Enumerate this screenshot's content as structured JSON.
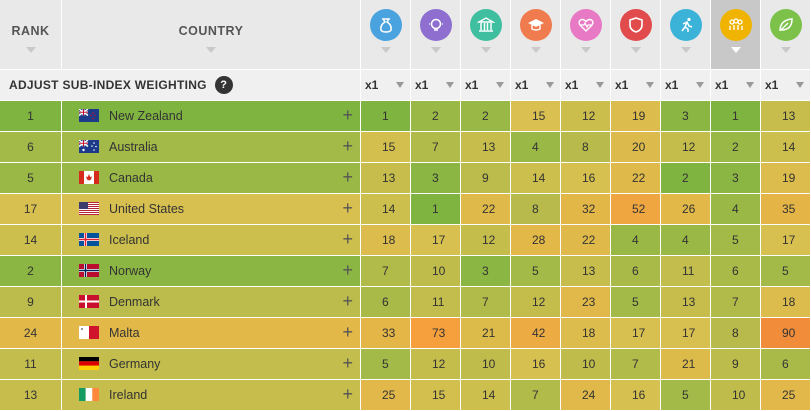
{
  "header": {
    "rank_label": "RANK",
    "country_label": "COUNTRY",
    "subindices": [
      {
        "icon": "money-bag-icon",
        "color": "#4aa3df",
        "active": false
      },
      {
        "icon": "lightbulb-icon",
        "color": "#8e6fd0",
        "active": false
      },
      {
        "icon": "government-building-icon",
        "color": "#3fbf9f",
        "active": false
      },
      {
        "icon": "graduation-cap-icon",
        "color": "#f07b4e",
        "active": false
      },
      {
        "icon": "heart-pulse-icon",
        "color": "#e879c4",
        "active": false
      },
      {
        "icon": "shield-icon",
        "color": "#e24b4b",
        "active": false
      },
      {
        "icon": "running-person-icon",
        "color": "#3bb3d8",
        "active": false
      },
      {
        "icon": "people-group-icon",
        "color": "#f0b400",
        "active": true
      },
      {
        "icon": "leaf-icon",
        "color": "#7cc24a",
        "active": false
      }
    ]
  },
  "weighting": {
    "label": "ADJUST SUB-INDEX WEIGHTING",
    "help": "?",
    "values": [
      "x1",
      "x1",
      "x1",
      "x1",
      "x1",
      "x1",
      "x1",
      "x1",
      "x1"
    ]
  },
  "rows": [
    {
      "rank": "1",
      "country": "New Zealand",
      "flag": "nz",
      "color": "#80b441",
      "values": [
        "1",
        "2",
        "2",
        "15",
        "12",
        "19",
        "3",
        "1",
        "13"
      ],
      "colors": [
        "#80b441",
        "#9ab846",
        "#9ab846",
        "#d9c050",
        "#cbbe4d",
        "#dbbc4c",
        "#8bb643",
        "#80b441",
        "#c6bd4c"
      ]
    },
    {
      "rank": "6",
      "country": "Australia",
      "flag": "au",
      "color": "#a3b948",
      "values": [
        "15",
        "7",
        "13",
        "4",
        "8",
        "20",
        "12",
        "2",
        "14"
      ],
      "colors": [
        "#d2bf4e",
        "#b1bb4a",
        "#c6bd4c",
        "#9ab846",
        "#b8bb4b",
        "#dcbb4c",
        "#c4bd4c",
        "#9ab846",
        "#cdbf4e"
      ]
    },
    {
      "rank": "5",
      "country": "Canada",
      "flag": "ca",
      "color": "#9ab846",
      "values": [
        "13",
        "3",
        "9",
        "14",
        "16",
        "22",
        "2",
        "3",
        "19"
      ],
      "colors": [
        "#c6bd4c",
        "#8bb643",
        "#bbbc4b",
        "#cdbf4e",
        "#d6c04f",
        "#dfba4a",
        "#80b441",
        "#8bb643",
        "#dbbc4c"
      ]
    },
    {
      "rank": "17",
      "country": "United States",
      "flag": "us",
      "color": "#d8c050",
      "values": [
        "14",
        "1",
        "22",
        "8",
        "32",
        "52",
        "26",
        "4",
        "35"
      ],
      "colors": [
        "#cdbf4e",
        "#80b441",
        "#dfba4a",
        "#b8bb4b",
        "#e3b648",
        "#f0a640",
        "#e2b849",
        "#9ab846",
        "#e5b447"
      ]
    },
    {
      "rank": "14",
      "country": "Iceland",
      "flag": "is",
      "color": "#cdbf4e",
      "values": [
        "18",
        "17",
        "12",
        "28",
        "22",
        "4",
        "4",
        "5",
        "17"
      ],
      "colors": [
        "#dbbc4c",
        "#d8c050",
        "#c4bd4c",
        "#e2b849",
        "#dfba4a",
        "#9ab846",
        "#9ab846",
        "#a3b948",
        "#d8c050"
      ]
    },
    {
      "rank": "2",
      "country": "Norway",
      "flag": "no",
      "color": "#8bb643",
      "values": [
        "7",
        "10",
        "3",
        "5",
        "13",
        "6",
        "11",
        "6",
        "5"
      ],
      "colors": [
        "#b1bb4a",
        "#bfbc4b",
        "#8bb643",
        "#a3b948",
        "#c6bd4c",
        "#aaba49",
        "#c2bd4c",
        "#aaba49",
        "#a3b948"
      ]
    },
    {
      "rank": "9",
      "country": "Denmark",
      "flag": "dk",
      "color": "#bbbc4b",
      "values": [
        "6",
        "11",
        "7",
        "12",
        "23",
        "5",
        "13",
        "7",
        "18"
      ],
      "colors": [
        "#aaba49",
        "#c2bd4c",
        "#b1bb4a",
        "#c4bd4c",
        "#e0b94a",
        "#a3b948",
        "#c6bd4c",
        "#b1bb4a",
        "#dbbc4c"
      ]
    },
    {
      "rank": "24",
      "country": "Malta",
      "flag": "mt",
      "color": "#e2b849",
      "values": [
        "33",
        "73",
        "21",
        "42",
        "18",
        "17",
        "17",
        "8",
        "90"
      ],
      "colors": [
        "#e4b547",
        "#f5a03c",
        "#ddbb4b",
        "#ecab43",
        "#dbbc4c",
        "#d8c050",
        "#d8c050",
        "#b8bb4b",
        "#f08c3a"
      ]
    },
    {
      "rank": "11",
      "country": "Germany",
      "flag": "de",
      "color": "#c2bd4c",
      "values": [
        "5",
        "12",
        "10",
        "16",
        "10",
        "7",
        "21",
        "9",
        "6"
      ],
      "colors": [
        "#a3b948",
        "#c4bd4c",
        "#bfbc4b",
        "#d6c04f",
        "#bfbc4b",
        "#b1bb4a",
        "#ddbb4b",
        "#bbbc4b",
        "#aaba49"
      ]
    },
    {
      "rank": "13",
      "country": "Ireland",
      "flag": "ie",
      "color": "#c6bd4c",
      "values": [
        "25",
        "15",
        "14",
        "7",
        "24",
        "16",
        "5",
        "10",
        "25"
      ],
      "colors": [
        "#e1b849",
        "#d2bf4e",
        "#cdbf4e",
        "#b1bb4a",
        "#e0b94a",
        "#d6c04f",
        "#a3b948",
        "#bfbc4b",
        "#e1b849"
      ]
    }
  ]
}
